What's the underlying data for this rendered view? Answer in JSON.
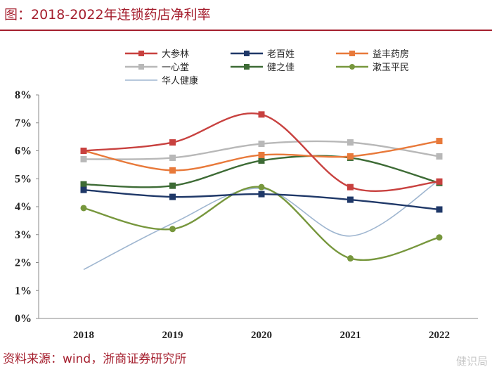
{
  "header": {
    "title": "图：2018-2022年连锁药店净利率"
  },
  "footer": {
    "source": "资料来源：wind，浙商证券研究所",
    "watermark": "健识局"
  },
  "chart_data": {
    "type": "line",
    "title": "图：2018-2022年连锁药店净利率",
    "xlabel": "",
    "ylabel": "",
    "categories": [
      "2018",
      "2019",
      "2020",
      "2021",
      "2022"
    ],
    "ylim": [
      0,
      8
    ],
    "yticks": [
      "0%",
      "1%",
      "2%",
      "3%",
      "4%",
      "5%",
      "6%",
      "7%",
      "8%"
    ],
    "grid": false,
    "legend_position": "top",
    "series": [
      {
        "name": "大参林",
        "color": "#c8413f",
        "marker": "square",
        "values": [
          6.0,
          6.3,
          7.3,
          4.7,
          4.9
        ]
      },
      {
        "name": "老百姓",
        "color": "#1f3868",
        "marker": "square",
        "values": [
          4.6,
          4.35,
          4.45,
          4.25,
          3.9
        ]
      },
      {
        "name": "益丰药房",
        "color": "#e8793a",
        "marker": "square",
        "values": [
          6.0,
          5.3,
          5.85,
          5.8,
          6.35
        ]
      },
      {
        "name": "一心堂",
        "color": "#b8b8b8",
        "marker": "square",
        "values": [
          5.7,
          5.75,
          6.25,
          6.3,
          5.8
        ]
      },
      {
        "name": "健之佳",
        "color": "#3d6b35",
        "marker": "square",
        "values": [
          4.8,
          4.75,
          5.65,
          5.75,
          4.85
        ]
      },
      {
        "name": "漱玉平民",
        "color": "#77973d",
        "marker": "circle",
        "values": [
          3.95,
          3.2,
          4.7,
          2.15,
          2.9
        ]
      },
      {
        "name": "华人健康",
        "color": "#9fb6d0",
        "marker": "none",
        "values": [
          1.75,
          3.4,
          4.65,
          2.95,
          4.95
        ]
      }
    ]
  }
}
